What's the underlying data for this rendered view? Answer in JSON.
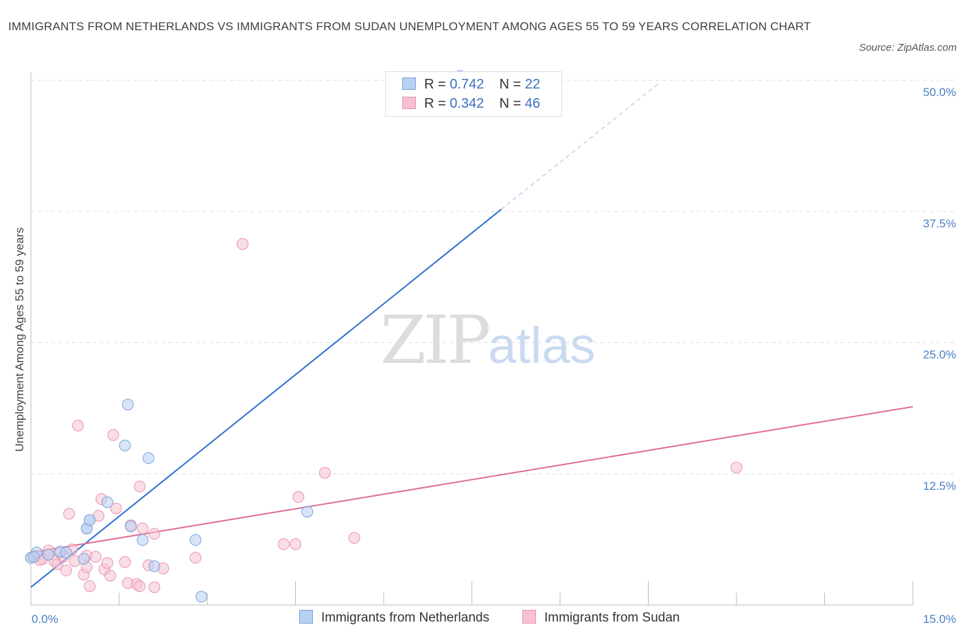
{
  "title": "IMMIGRANTS FROM NETHERLANDS VS IMMIGRANTS FROM SUDAN UNEMPLOYMENT AMONG AGES 55 TO 59 YEARS CORRELATION CHART",
  "source": "Source: ZipAtlas.com",
  "watermark": {
    "zip": "ZIP",
    "atlas": "atlas"
  },
  "legend": {
    "netherlands": {
      "r_label": "R =",
      "r": "0.742",
      "n_label": "N =",
      "n": "22"
    },
    "sudan": {
      "r_label": "R =",
      "r": "0.342",
      "n_label": "N =",
      "n": "46"
    }
  },
  "bottom_legend": {
    "netherlands": "Immigrants from Netherlands",
    "sudan": "Immigrants from Sudan"
  },
  "colors": {
    "netherlands_fill": "#b8d0f3",
    "netherlands_stroke": "#7aa3dc",
    "netherlands_line": "#2b6fd0",
    "sudan_fill": "#f6c2d1",
    "sudan_stroke": "#e993b0",
    "sudan_line": "#e06c95",
    "axis_text": "#4a7fc4",
    "grid": "#dddddd"
  },
  "chart_data": {
    "type": "scatter",
    "title": "IMMIGRANTS FROM NETHERLANDS VS IMMIGRANTS FROM SUDAN UNEMPLOYMENT AMONG AGES 55 TO 59 YEARS CORRELATION CHART",
    "xlabel": "",
    "ylabel": "Unemployment Among Ages 55 to 59 years",
    "xlim": [
      0,
      15
    ],
    "ylim": [
      0,
      50
    ],
    "x_tick_labels": [
      "0.0%",
      "15.0%"
    ],
    "y_ticks": [
      12.5,
      25.0,
      37.5,
      50.0
    ],
    "y_tick_labels": [
      "12.5%",
      "25.0%",
      "37.5%",
      "50.0%"
    ],
    "grid": true,
    "series": [
      {
        "name": "Immigrants from Netherlands",
        "points": [
          [
            0.0,
            4.5
          ],
          [
            0.1,
            5.0
          ],
          [
            0.3,
            4.8
          ],
          [
            0.5,
            5.1
          ],
          [
            0.6,
            5.0
          ],
          [
            0.9,
            4.4
          ],
          [
            0.95,
            7.3
          ],
          [
            0.95,
            7.3
          ],
          [
            1.0,
            8.1
          ],
          [
            1.0,
            8.1
          ],
          [
            1.3,
            9.8
          ],
          [
            1.6,
            15.2
          ],
          [
            1.65,
            19.1
          ],
          [
            1.7,
            7.5
          ],
          [
            1.9,
            6.2
          ],
          [
            2.0,
            14.0
          ],
          [
            2.1,
            3.7
          ],
          [
            2.8,
            6.2
          ],
          [
            2.9,
            0.8
          ],
          [
            4.7,
            8.9
          ],
          [
            7.3,
            50.4
          ],
          [
            0.05,
            4.6
          ]
        ],
        "trend": {
          "x": [
            0,
            8.0
          ],
          "y": [
            1.7,
            37.7
          ],
          "dashed_extension": {
            "x": [
              8.0,
              10.7
            ],
            "y": [
              37.7,
              49.8
            ]
          }
        }
      },
      {
        "name": "Immigrants from Sudan",
        "points": [
          [
            0.0,
            4.5
          ],
          [
            0.1,
            4.7
          ],
          [
            0.2,
            4.4
          ],
          [
            0.3,
            5.2
          ],
          [
            0.4,
            4.2
          ],
          [
            0.45,
            3.9
          ],
          [
            0.5,
            5.0
          ],
          [
            0.6,
            3.3
          ],
          [
            0.65,
            8.7
          ],
          [
            0.7,
            5.3
          ],
          [
            0.75,
            4.2
          ],
          [
            0.8,
            17.1
          ],
          [
            0.9,
            2.9
          ],
          [
            0.95,
            4.7
          ],
          [
            0.95,
            3.6
          ],
          [
            1.0,
            1.8
          ],
          [
            1.1,
            4.6
          ],
          [
            1.15,
            8.5
          ],
          [
            1.2,
            10.1
          ],
          [
            1.25,
            3.4
          ],
          [
            1.3,
            4.0
          ],
          [
            1.35,
            2.8
          ],
          [
            1.4,
            16.2
          ],
          [
            1.45,
            9.2
          ],
          [
            1.6,
            4.1
          ],
          [
            1.65,
            2.1
          ],
          [
            1.7,
            7.6
          ],
          [
            1.8,
            2.0
          ],
          [
            1.85,
            1.8
          ],
          [
            1.85,
            11.3
          ],
          [
            1.9,
            7.3
          ],
          [
            2.0,
            3.8
          ],
          [
            2.1,
            1.7
          ],
          [
            2.1,
            6.8
          ],
          [
            2.25,
            3.5
          ],
          [
            2.8,
            4.5
          ],
          [
            3.6,
            34.4
          ],
          [
            4.3,
            5.8
          ],
          [
            4.5,
            5.8
          ],
          [
            4.55,
            10.3
          ],
          [
            5.0,
            12.6
          ],
          [
            5.5,
            6.4
          ],
          [
            12.0,
            13.1
          ],
          [
            0.3,
            4.8
          ],
          [
            0.15,
            4.3
          ],
          [
            0.55,
            4.6
          ]
        ],
        "trend": {
          "x": [
            0,
            15.0
          ],
          "y": [
            5.0,
            18.9
          ]
        }
      }
    ]
  }
}
